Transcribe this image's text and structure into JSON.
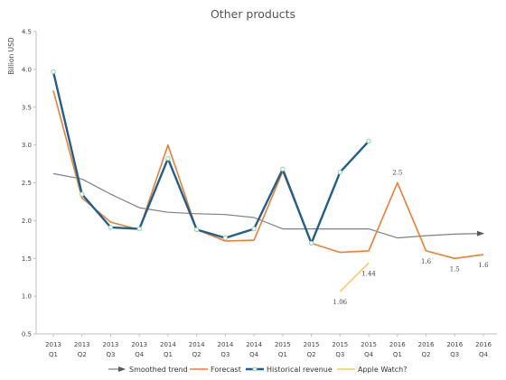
{
  "chart_data": {
    "type": "line",
    "title": "Other products",
    "ylabel": "Billion USD",
    "xlabel": "",
    "ylim": [
      0.5,
      4.5
    ],
    "y_ticks": [
      "0.5",
      "1.0",
      "1.5",
      "2.0",
      "2.5",
      "3.0",
      "3.5",
      "4.0",
      "4.5"
    ],
    "categories": [
      {
        "year": "2013",
        "q": "Q1"
      },
      {
        "year": "2013",
        "q": "Q2"
      },
      {
        "year": "2013",
        "q": "Q3"
      },
      {
        "year": "2013",
        "q": "Q4"
      },
      {
        "year": "2014",
        "q": "Q1"
      },
      {
        "year": "2014",
        "q": "Q2"
      },
      {
        "year": "2014",
        "q": "Q3"
      },
      {
        "year": "2014",
        "q": "Q4"
      },
      {
        "year": "2015",
        "q": "Q1"
      },
      {
        "year": "2015",
        "q": "Q2"
      },
      {
        "year": "2015",
        "q": "Q3"
      },
      {
        "year": "2015",
        "q": "Q4"
      },
      {
        "year": "2016",
        "q": "Q1"
      },
      {
        "year": "2016",
        "q": "Q2"
      },
      {
        "year": "2016",
        "q": "Q3"
      },
      {
        "year": "2016",
        "q": "Q4"
      }
    ],
    "grid": false,
    "legend_position": "bottom",
    "series": [
      {
        "name": "Smoothed trend",
        "color": "#7f7f7f",
        "style": "arrow",
        "values": [
          2.62,
          2.55,
          2.35,
          2.17,
          2.11,
          2.09,
          2.08,
          2.04,
          1.89,
          1.89,
          1.89,
          1.89,
          1.77,
          1.8,
          1.82,
          1.83
        ]
      },
      {
        "name": "Forecast",
        "color": "#ed7d31",
        "style": "line",
        "values": [
          3.72,
          2.3,
          1.98,
          1.88,
          3.0,
          1.88,
          1.73,
          1.74,
          2.65,
          1.7,
          1.58,
          1.6,
          2.5,
          1.6,
          1.5,
          1.55
        ]
      },
      {
        "name": "Historical revenue",
        "color": "#1f5f8b",
        "style": "line-markers",
        "values": [
          3.97,
          2.35,
          1.91,
          1.89,
          2.82,
          1.88,
          1.77,
          1.89,
          2.68,
          1.7,
          2.64,
          3.05,
          null,
          null,
          null,
          null
        ]
      },
      {
        "name": "Apple Watch?",
        "color": "#f7c86a",
        "style": "line",
        "values": [
          null,
          null,
          null,
          null,
          null,
          null,
          null,
          null,
          null,
          null,
          1.06,
          1.44,
          null,
          null,
          null,
          null
        ]
      }
    ],
    "data_labels": [
      {
        "text": "1.06",
        "series": "Apple Watch?",
        "index": 10,
        "value": 1.06,
        "pos": "below"
      },
      {
        "text": "1.44",
        "series": "Apple Watch?",
        "index": 11,
        "value": 1.44,
        "pos": "below"
      },
      {
        "text": "2.5",
        "series": "Forecast",
        "index": 12,
        "value": 2.5,
        "pos": "above"
      },
      {
        "text": "1.6",
        "series": "Forecast",
        "index": 13,
        "value": 1.6,
        "pos": "below"
      },
      {
        "text": "1.5",
        "series": "Forecast",
        "index": 14,
        "value": 1.5,
        "pos": "below"
      },
      {
        "text": "1.6",
        "series": "Forecast",
        "index": 15,
        "value": 1.55,
        "pos": "below"
      }
    ]
  }
}
